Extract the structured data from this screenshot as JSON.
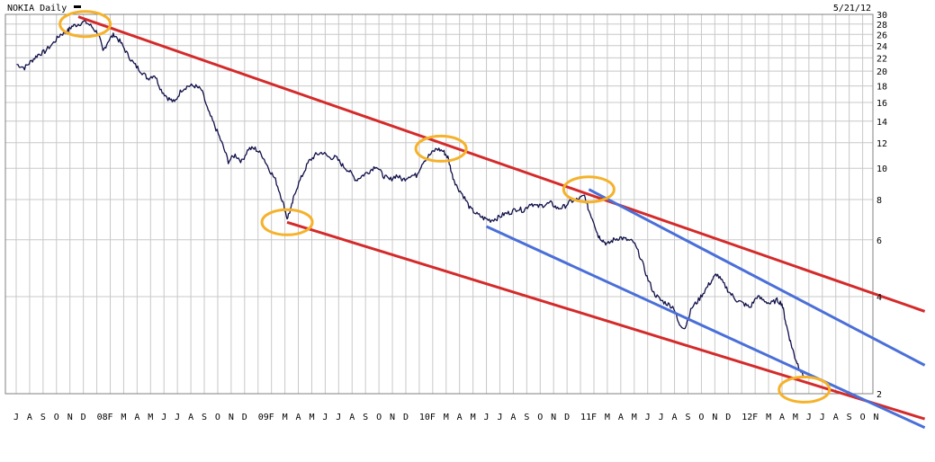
{
  "chart_data": {
    "type": "line",
    "title": "NOKIA Daily",
    "date": "5/21/12",
    "y_scale": "log",
    "ylim": [
      2,
      30
    ],
    "y_ticks": [
      2,
      4,
      6,
      8,
      10,
      12,
      14,
      16,
      18,
      20,
      22,
      24,
      26,
      28,
      30
    ],
    "x_ticks": [
      "J",
      "A",
      "S",
      "O",
      "N",
      "D",
      "08",
      "F",
      "M",
      "A",
      "M",
      "J",
      "J",
      "A",
      "S",
      "O",
      "N",
      "D",
      "09",
      "F",
      "M",
      "A",
      "M",
      "J",
      "J",
      "A",
      "S",
      "O",
      "N",
      "D",
      "10",
      "F",
      "M",
      "A",
      "M",
      "J",
      "J",
      "A",
      "S",
      "O",
      "N",
      "D",
      "11",
      "F",
      "M",
      "A",
      "M",
      "J",
      "J",
      "A",
      "S",
      "O",
      "N",
      "D",
      "12",
      "F",
      "M",
      "A",
      "M",
      "J",
      "J",
      "A",
      "S",
      "O",
      "N"
    ],
    "x_start": "2007-07",
    "grid": true,
    "series": [
      {
        "name": "",
        "color": "#10104a",
        "points": [
          [
            "2007-07-02",
            21.0
          ],
          [
            "2007-07-20",
            20.5
          ],
          [
            "2007-08-05",
            21.5
          ],
          [
            "2007-08-20",
            22.5
          ],
          [
            "2007-09-05",
            23.0
          ],
          [
            "2007-09-25",
            24.5
          ],
          [
            "2007-10-10",
            26.0
          ],
          [
            "2007-10-25",
            26.5
          ],
          [
            "2007-11-05",
            27.5
          ],
          [
            "2007-11-20",
            28.0
          ],
          [
            "2007-12-05",
            28.5
          ],
          [
            "2007-12-20",
            27.5
          ],
          [
            "2008-01-05",
            26.0
          ],
          [
            "2008-01-15",
            23.0
          ],
          [
            "2008-01-28",
            25.0
          ],
          [
            "2008-02-10",
            26.0
          ],
          [
            "2008-02-25",
            24.5
          ],
          [
            "2008-03-10",
            22.5
          ],
          [
            "2008-03-25",
            21.0
          ],
          [
            "2008-04-10",
            20.0
          ],
          [
            "2008-04-25",
            19.0
          ],
          [
            "2008-05-10",
            19.5
          ],
          [
            "2008-05-25",
            17.5
          ],
          [
            "2008-06-10",
            16.5
          ],
          [
            "2008-06-25",
            16.0
          ],
          [
            "2008-07-10",
            17.5
          ],
          [
            "2008-07-25",
            18.0
          ],
          [
            "2008-08-10",
            18.0
          ],
          [
            "2008-08-25",
            17.5
          ],
          [
            "2008-09-10",
            15.0
          ],
          [
            "2008-09-25",
            13.5
          ],
          [
            "2008-10-10",
            12.0
          ],
          [
            "2008-10-25",
            10.5
          ],
          [
            "2008-11-10",
            11.0
          ],
          [
            "2008-11-25",
            10.5
          ],
          [
            "2008-12-10",
            11.5
          ],
          [
            "2008-12-25",
            11.5
          ],
          [
            "2009-01-10",
            11.0
          ],
          [
            "2009-01-25",
            10.0
          ],
          [
            "2009-02-10",
            9.2
          ],
          [
            "2009-02-25",
            8.0
          ],
          [
            "2009-03-06",
            7.0
          ],
          [
            "2009-03-15",
            7.5
          ],
          [
            "2009-03-25",
            8.5
          ],
          [
            "2009-04-10",
            9.5
          ],
          [
            "2009-04-25",
            10.5
          ],
          [
            "2009-05-10",
            11.0
          ],
          [
            "2009-05-25",
            11.2
          ],
          [
            "2009-06-10",
            10.8
          ],
          [
            "2009-06-25",
            10.8
          ],
          [
            "2009-07-10",
            10.2
          ],
          [
            "2009-07-25",
            9.8
          ],
          [
            "2009-08-10",
            9.2
          ],
          [
            "2009-08-25",
            9.5
          ],
          [
            "2009-09-10",
            9.8
          ],
          [
            "2009-09-25",
            10.2
          ],
          [
            "2009-10-10",
            9.5
          ],
          [
            "2009-10-25",
            9.2
          ],
          [
            "2009-11-10",
            9.5
          ],
          [
            "2009-11-25",
            9.2
          ],
          [
            "2009-12-10",
            9.5
          ],
          [
            "2009-12-25",
            9.5
          ],
          [
            "2010-01-10",
            10.5
          ],
          [
            "2010-01-25",
            11.0
          ],
          [
            "2010-02-10",
            11.5
          ],
          [
            "2010-02-25",
            11.3
          ],
          [
            "2010-03-05",
            10.8
          ],
          [
            "2010-03-15",
            9.5
          ],
          [
            "2010-03-25",
            8.8
          ],
          [
            "2010-04-10",
            8.2
          ],
          [
            "2010-04-25",
            7.5
          ],
          [
            "2010-05-10",
            7.2
          ],
          [
            "2010-05-25",
            7.0
          ],
          [
            "2010-06-10",
            6.9
          ],
          [
            "2010-06-25",
            7.0
          ],
          [
            "2010-07-10",
            7.2
          ],
          [
            "2010-07-25",
            7.3
          ],
          [
            "2010-08-10",
            7.5
          ],
          [
            "2010-08-25",
            7.4
          ],
          [
            "2010-09-10",
            7.8
          ],
          [
            "2010-09-25",
            7.6
          ],
          [
            "2010-10-10",
            7.7
          ],
          [
            "2010-10-25",
            7.8
          ],
          [
            "2010-11-10",
            7.5
          ],
          [
            "2010-11-25",
            7.6
          ],
          [
            "2010-12-10",
            7.9
          ],
          [
            "2010-12-25",
            8.0
          ],
          [
            "2011-01-10",
            8.2
          ],
          [
            "2011-01-20",
            7.4
          ],
          [
            "2011-02-01",
            6.8
          ],
          [
            "2011-02-10",
            6.2
          ],
          [
            "2011-02-20",
            6.0
          ],
          [
            "2011-03-01",
            5.8
          ],
          [
            "2011-03-15",
            6.0
          ],
          [
            "2011-03-30",
            6.1
          ],
          [
            "2011-04-15",
            6.0
          ],
          [
            "2011-04-30",
            5.9
          ],
          [
            "2011-05-15",
            5.3
          ],
          [
            "2011-05-30",
            4.6
          ],
          [
            "2011-06-15",
            4.1
          ],
          [
            "2011-06-30",
            3.9
          ],
          [
            "2011-07-15",
            3.8
          ],
          [
            "2011-07-30",
            3.7
          ],
          [
            "2011-08-10",
            3.3
          ],
          [
            "2011-08-25",
            3.2
          ],
          [
            "2011-09-10",
            3.7
          ],
          [
            "2011-09-25",
            3.9
          ],
          [
            "2011-10-10",
            4.2
          ],
          [
            "2011-10-25",
            4.5
          ],
          [
            "2011-11-05",
            4.7
          ],
          [
            "2011-11-20",
            4.4
          ],
          [
            "2011-12-05",
            4.1
          ],
          [
            "2011-12-20",
            3.9
          ],
          [
            "2012-01-05",
            3.8
          ],
          [
            "2012-01-20",
            3.7
          ],
          [
            "2012-02-05",
            4.0
          ],
          [
            "2012-02-20",
            3.9
          ],
          [
            "2012-03-05",
            3.8
          ],
          [
            "2012-03-20",
            3.9
          ],
          [
            "2012-04-01",
            3.8
          ],
          [
            "2012-04-10",
            3.3
          ],
          [
            "2012-04-20",
            2.9
          ],
          [
            "2012-04-30",
            2.6
          ],
          [
            "2012-05-10",
            2.4
          ],
          [
            "2012-05-21",
            2.25
          ]
        ]
      }
    ],
    "trendlines": [
      {
        "color": "#d42a2a",
        "points": [
          [
            "2007-11-20",
            29.5
          ],
          [
            "2013-02-20",
            3.6
          ]
        ]
      },
      {
        "color": "#d42a2a",
        "points": [
          [
            "2009-03-06",
            6.8
          ],
          [
            "2013-02-20",
            1.67
          ]
        ]
      },
      {
        "color": "#4a6fd8",
        "points": [
          [
            "2010-06-01",
            6.6
          ],
          [
            "2013-02-20",
            1.57
          ]
        ]
      },
      {
        "color": "#4a6fd8",
        "points": [
          [
            "2011-01-20",
            8.6
          ],
          [
            "2013-02-20",
            2.45
          ]
        ]
      }
    ],
    "highlight_circles": [
      {
        "color": "#f5b22a",
        "date": "2007-12-05",
        "value": 28.0
      },
      {
        "color": "#f5b22a",
        "date": "2009-03-06",
        "value": 6.8
      },
      {
        "color": "#f5b22a",
        "date": "2010-02-20",
        "value": 11.5
      },
      {
        "color": "#f5b22a",
        "date": "2011-01-20",
        "value": 8.6
      },
      {
        "color": "#f5b22a",
        "date": "2012-05-21",
        "value": 2.06
      }
    ]
  }
}
